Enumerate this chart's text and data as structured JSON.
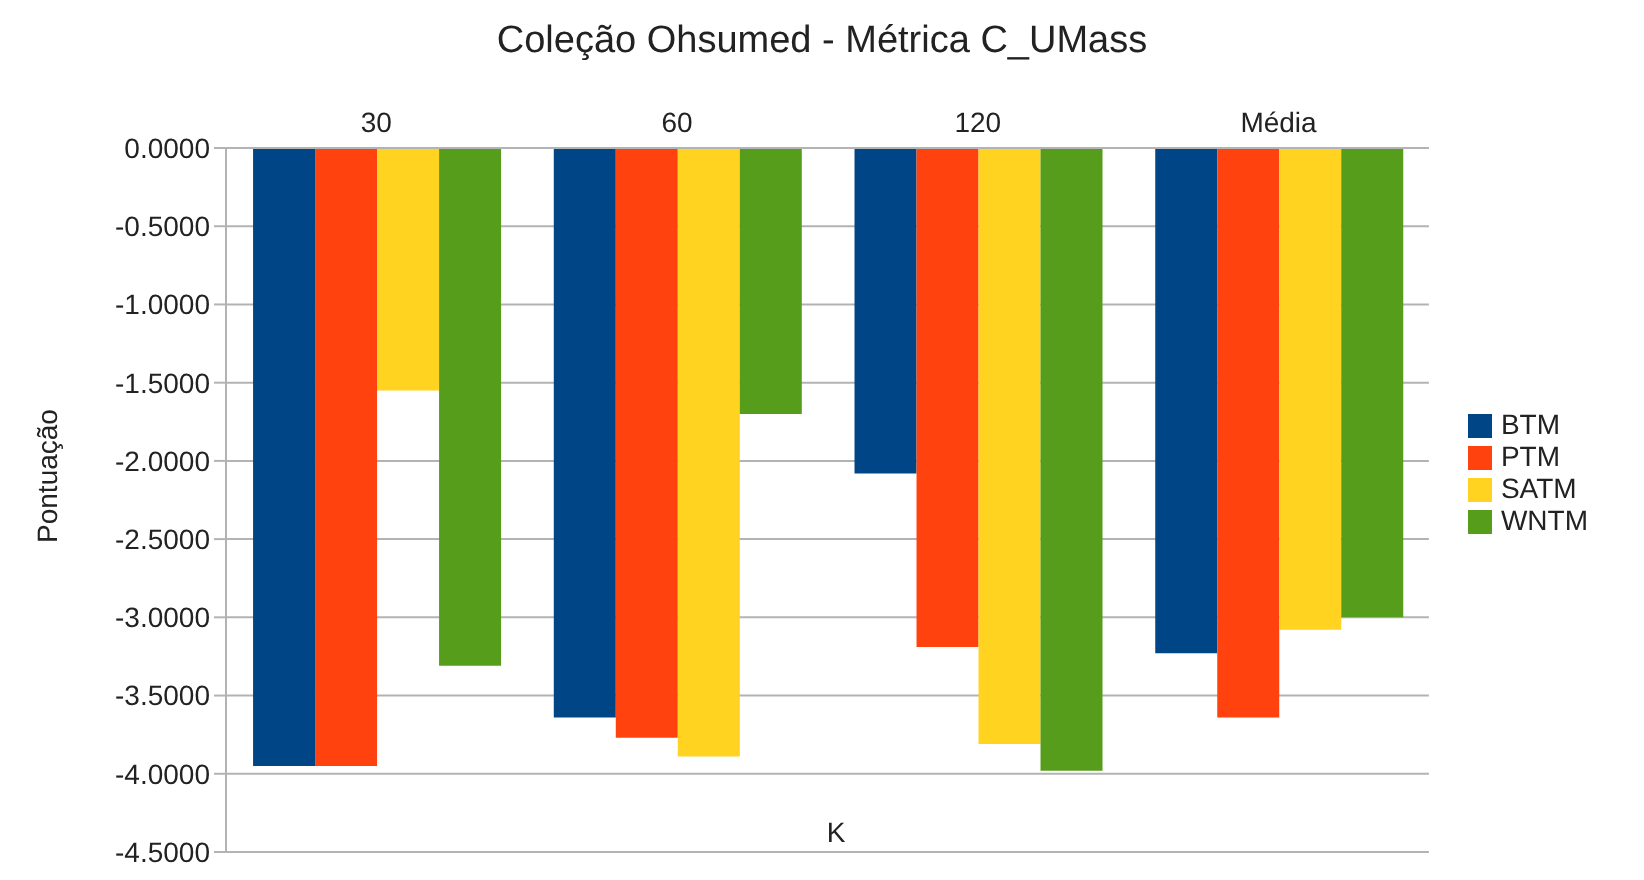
{
  "chart_data": {
    "type": "bar",
    "title": "Coleção Ohsumed - Métrica C_UMass",
    "xlabel": "K",
    "ylabel": "Pontuação",
    "categories": [
      "30",
      "60",
      "120",
      "Média"
    ],
    "series": [
      {
        "name": "BTM",
        "color": "#004586",
        "values": [
          -3.95,
          -3.64,
          -2.08,
          -3.23
        ]
      },
      {
        "name": "PTM",
        "color": "#ff420e",
        "values": [
          -3.95,
          -3.77,
          -3.19,
          -3.64
        ]
      },
      {
        "name": "SATM",
        "color": "#ffd320",
        "values": [
          -1.55,
          -3.89,
          -3.81,
          -3.08
        ]
      },
      {
        "name": "WNTM",
        "color": "#579d1c",
        "values": [
          -3.31,
          -1.7,
          -3.98,
          -3.0
        ]
      }
    ],
    "ylim": [
      -4.5,
      0
    ],
    "yticks": [
      {
        "value": 0,
        "label": "0.0000"
      },
      {
        "value": -0.5,
        "label": "-0.5000"
      },
      {
        "value": -1,
        "label": "-1.0000"
      },
      {
        "value": -1.5,
        "label": "-1.5000"
      },
      {
        "value": -2,
        "label": "-2.0000"
      },
      {
        "value": -2.5,
        "label": "-2.5000"
      },
      {
        "value": -3,
        "label": "-3.0000"
      },
      {
        "value": -3.5,
        "label": "-3.5000"
      },
      {
        "value": -4,
        "label": "-4.0000"
      },
      {
        "value": -4.5,
        "label": "-4.5000"
      }
    ],
    "grid": "y",
    "legend": "right"
  }
}
